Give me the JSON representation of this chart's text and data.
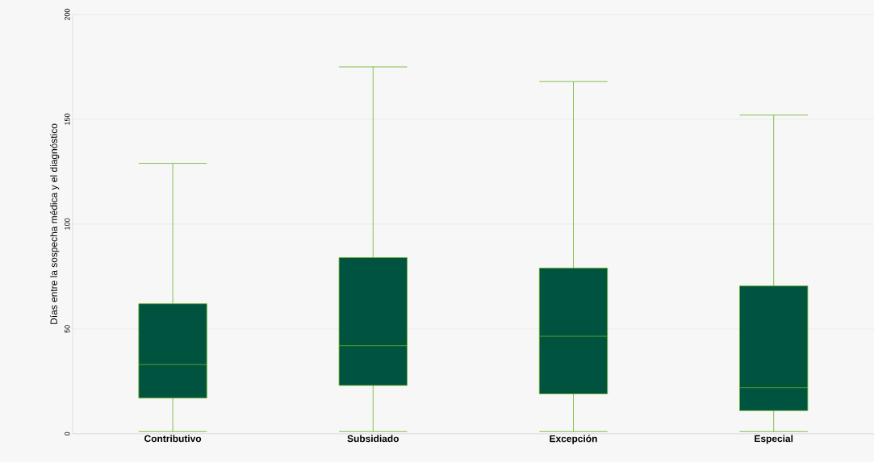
{
  "chart_data": {
    "type": "box",
    "ylabel": "Días entre la sospecha médica y el diagnóstico",
    "categories": [
      "Contributivo",
      "Subsidiado",
      "Excepción",
      "Especial"
    ],
    "boxes": [
      {
        "low": 1,
        "q1": 17,
        "median": 33,
        "q3": 62,
        "high": 129
      },
      {
        "low": 1,
        "q1": 23,
        "median": 42,
        "q3": 84,
        "high": 175
      },
      {
        "low": 1,
        "q1": 19,
        "median": 46.5,
        "q3": 79,
        "high": 168
      },
      {
        "low": 1,
        "q1": 11,
        "median": 22,
        "q3": 70.5,
        "high": 152
      }
    ],
    "color": "#00543f",
    "ylim": [
      0,
      200
    ],
    "yticks": [
      0,
      50,
      100,
      150,
      200
    ],
    "grid": "y"
  }
}
